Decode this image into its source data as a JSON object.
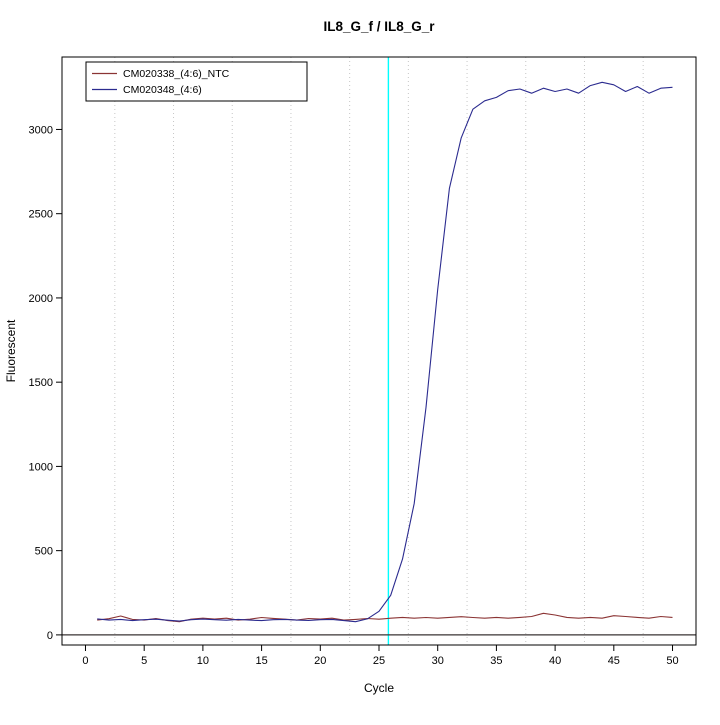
{
  "chart_data": {
    "type": "line",
    "title": "IL8_G_f / IL8_G_r",
    "xlabel": "Cycle",
    "ylabel": "Fluorescent",
    "xlim": [
      0,
      50
    ],
    "ylim": [
      0,
      3300
    ],
    "x_ticks": [
      0,
      5,
      10,
      15,
      20,
      25,
      30,
      35,
      40,
      45,
      50
    ],
    "y_ticks": [
      0,
      500,
      1000,
      1500,
      2000,
      2500,
      3000
    ],
    "grid_vertical_dotted_x": [
      2.5,
      7.5,
      12.5,
      17.5,
      22.5,
      27.5,
      32.5,
      37.5,
      42.5,
      47.5
    ],
    "grid_color": "#c6c6c6",
    "threshold_line": {
      "x": 25.8,
      "color": "#00ffff"
    },
    "baseline": {
      "y": 0,
      "color": "#3a3434"
    },
    "legend_position": "top-left",
    "x": [
      1,
      2,
      3,
      4,
      5,
      6,
      7,
      8,
      9,
      10,
      11,
      12,
      13,
      14,
      15,
      16,
      17,
      18,
      19,
      20,
      21,
      22,
      23,
      24,
      25,
      26,
      27,
      28,
      29,
      30,
      31,
      32,
      33,
      34,
      35,
      36,
      37,
      38,
      39,
      40,
      41,
      42,
      43,
      44,
      45,
      46,
      47,
      48,
      49,
      50
    ],
    "series": [
      {
        "name": "CM020338_(4:6)_NTC",
        "color": "#8b3434",
        "values": [
          88,
          96,
          112,
          92,
          88,
          97,
          85,
          78,
          93,
          99,
          94,
          99,
          88,
          93,
          103,
          98,
          93,
          88,
          97,
          94,
          99,
          88,
          92,
          97,
          93,
          99,
          104,
          99,
          103,
          99,
          104,
          108,
          103,
          99,
          104,
          99,
          104,
          109,
          128,
          118,
          104,
          99,
          104,
          99,
          114,
          109,
          104,
          99,
          109,
          104
        ]
      },
      {
        "name": "CM020348_(4:6)",
        "color": "#2b2b8f",
        "values": [
          95,
          88,
          92,
          85,
          90,
          93,
          87,
          82,
          90,
          94,
          90,
          87,
          92,
          88,
          85,
          90,
          92,
          88,
          86,
          90,
          92,
          85,
          78,
          95,
          140,
          235,
          450,
          780,
          1350,
          2050,
          2650,
          2950,
          3120,
          3170,
          3190,
          3230,
          3240,
          3215,
          3245,
          3225,
          3240,
          3215,
          3260,
          3280,
          3265,
          3225,
          3255,
          3215,
          3245,
          3250
        ]
      }
    ]
  },
  "legend": {
    "items": [
      "CM020338_(4:6)_NTC",
      "CM020348_(4:6)"
    ]
  }
}
